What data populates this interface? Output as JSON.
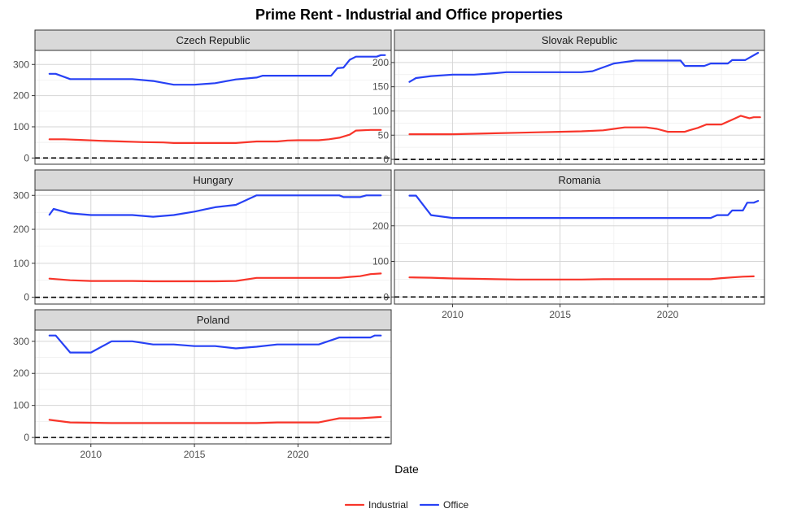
{
  "chart_data": {
    "type": "line",
    "title": "Prime Rent - Industrial and Office properties",
    "xlabel": "Date",
    "ylabel": "",
    "xlim": [
      2007.3,
      2024.5
    ],
    "x_ticks": [
      2010,
      2015,
      2020
    ],
    "zero_line": "dashed",
    "legend_position": "bottom",
    "series_names": [
      "Industrial",
      "Office"
    ],
    "colors": {
      "Industrial": "#f8352a",
      "Office": "#2741f5"
    },
    "panels": [
      {
        "name": "Czech Republic",
        "ylim": [
          -20,
          345
        ],
        "y_ticks": [
          0,
          100,
          200,
          300
        ],
        "series": [
          {
            "name": "Industrial",
            "points": [
              [
                2008,
                60
              ],
              [
                2008.7,
                60
              ],
              [
                2009.5,
                58
              ],
              [
                2010.5,
                55
              ],
              [
                2011.5,
                53
              ],
              [
                2012.5,
                51
              ],
              [
                2013.5,
                50
              ],
              [
                2014,
                48
              ],
              [
                2015,
                48
              ],
              [
                2016,
                48
              ],
              [
                2017,
                48
              ],
              [
                2018,
                53
              ],
              [
                2019,
                53
              ],
              [
                2019.5,
                56
              ],
              [
                2020,
                57
              ],
              [
                2021,
                57
              ],
              [
                2021.5,
                60
              ],
              [
                2022,
                65
              ],
              [
                2022.5,
                75
              ],
              [
                2022.8,
                88
              ],
              [
                2023.5,
                90
              ],
              [
                2024,
                90
              ]
            ]
          },
          {
            "name": "Office",
            "points": [
              [
                2008,
                270
              ],
              [
                2008.3,
                270
              ],
              [
                2009,
                253
              ],
              [
                2010,
                253
              ],
              [
                2011,
                253
              ],
              [
                2012,
                253
              ],
              [
                2013,
                247
              ],
              [
                2014,
                235
              ],
              [
                2015,
                235
              ],
              [
                2016,
                240
              ],
              [
                2017,
                252
              ],
              [
                2018,
                258
              ],
              [
                2018.3,
                264
              ],
              [
                2019,
                264
              ],
              [
                2020,
                264
              ],
              [
                2021,
                264
              ],
              [
                2021.6,
                264
              ],
              [
                2021.9,
                288
              ],
              [
                2022.2,
                290
              ],
              [
                2022.5,
                315
              ],
              [
                2022.8,
                325
              ],
              [
                2023.5,
                325
              ],
              [
                2023.8,
                325
              ],
              [
                2024,
                330
              ],
              [
                2024.2,
                330
              ]
            ]
          }
        ]
      },
      {
        "name": "Slovak Republic",
        "ylim": [
          -10,
          225
        ],
        "y_ticks": [
          0,
          50,
          100,
          150,
          200
        ],
        "series": [
          {
            "name": "Industrial",
            "points": [
              [
                2008,
                52
              ],
              [
                2009,
                52
              ],
              [
                2010,
                52
              ],
              [
                2011,
                53
              ],
              [
                2012,
                54
              ],
              [
                2013,
                55
              ],
              [
                2014,
                56
              ],
              [
                2015,
                57
              ],
              [
                2016,
                58
              ],
              [
                2017,
                60
              ],
              [
                2017.5,
                63
              ],
              [
                2018,
                66
              ],
              [
                2019,
                66
              ],
              [
                2019.5,
                63
              ],
              [
                2020,
                57
              ],
              [
                2020.8,
                57
              ],
              [
                2021,
                60
              ],
              [
                2021.4,
                65
              ],
              [
                2021.8,
                72
              ],
              [
                2022.5,
                72
              ],
              [
                2023,
                82
              ],
              [
                2023.4,
                90
              ],
              [
                2023.8,
                85
              ],
              [
                2024,
                87
              ],
              [
                2024.3,
                87
              ]
            ]
          },
          {
            "name": "Office",
            "points": [
              [
                2008,
                160
              ],
              [
                2008.3,
                168
              ],
              [
                2009,
                172
              ],
              [
                2010,
                175
              ],
              [
                2011,
                175
              ],
              [
                2012,
                178
              ],
              [
                2012.5,
                180
              ],
              [
                2013,
                180
              ],
              [
                2014,
                180
              ],
              [
                2015,
                180
              ],
              [
                2016,
                180
              ],
              [
                2016.5,
                182
              ],
              [
                2017.5,
                198
              ],
              [
                2018.5,
                204
              ],
              [
                2019.5,
                204
              ],
              [
                2020,
                204
              ],
              [
                2020.6,
                204
              ],
              [
                2020.8,
                193
              ],
              [
                2021,
                193
              ],
              [
                2021.7,
                193
              ],
              [
                2022,
                198
              ],
              [
                2022.8,
                198
              ],
              [
                2023,
                205
              ],
              [
                2023.6,
                205
              ],
              [
                2024.2,
                220
              ]
            ]
          }
        ]
      },
      {
        "name": "Hungary",
        "ylim": [
          -20,
          315
        ],
        "y_ticks": [
          0,
          100,
          200,
          300
        ],
        "series": [
          {
            "name": "Industrial",
            "points": [
              [
                2008,
                55
              ],
              [
                2009,
                50
              ],
              [
                2010,
                48
              ],
              [
                2011,
                48
              ],
              [
                2012,
                48
              ],
              [
                2013,
                47
              ],
              [
                2014,
                47
              ],
              [
                2015,
                47
              ],
              [
                2016,
                47
              ],
              [
                2017,
                48
              ],
              [
                2018,
                57
              ],
              [
                2019,
                57
              ],
              [
                2020,
                57
              ],
              [
                2021,
                57
              ],
              [
                2022,
                57
              ],
              [
                2022.5,
                60
              ],
              [
                2023,
                62
              ],
              [
                2023.5,
                68
              ],
              [
                2024,
                70
              ]
            ]
          },
          {
            "name": "Office",
            "points": [
              [
                2008,
                243
              ],
              [
                2008.2,
                260
              ],
              [
                2009,
                247
              ],
              [
                2010,
                242
              ],
              [
                2011,
                242
              ],
              [
                2012,
                242
              ],
              [
                2013,
                237
              ],
              [
                2014,
                242
              ],
              [
                2015,
                252
              ],
              [
                2016,
                265
              ],
              [
                2017,
                272
              ],
              [
                2018,
                300
              ],
              [
                2019,
                300
              ],
              [
                2020,
                300
              ],
              [
                2021,
                300
              ],
              [
                2022,
                300
              ],
              [
                2022.2,
                295
              ],
              [
                2023,
                295
              ],
              [
                2023.3,
                300
              ],
              [
                2024,
                300
              ]
            ]
          }
        ]
      },
      {
        "name": "Romania",
        "ylim": [
          -20,
          300
        ],
        "y_ticks": [
          0,
          100,
          200
        ],
        "series": [
          {
            "name": "Industrial",
            "points": [
              [
                2008,
                55
              ],
              [
                2009,
                54
              ],
              [
                2010,
                52
              ],
              [
                2011,
                51
              ],
              [
                2012,
                50
              ],
              [
                2013,
                49
              ],
              [
                2014,
                49
              ],
              [
                2015,
                49
              ],
              [
                2016,
                49
              ],
              [
                2017,
                50
              ],
              [
                2018,
                50
              ],
              [
                2019,
                50
              ],
              [
                2020,
                50
              ],
              [
                2021,
                50
              ],
              [
                2022,
                50
              ],
              [
                2022.5,
                53
              ],
              [
                2023,
                55
              ],
              [
                2023.5,
                57
              ],
              [
                2024,
                58
              ]
            ]
          },
          {
            "name": "Office",
            "points": [
              [
                2008,
                285
              ],
              [
                2008.3,
                285
              ],
              [
                2009,
                230
              ],
              [
                2010,
                222
              ],
              [
                2011,
                222
              ],
              [
                2012,
                222
              ],
              [
                2013,
                222
              ],
              [
                2014,
                222
              ],
              [
                2015,
                222
              ],
              [
                2016,
                222
              ],
              [
                2017,
                222
              ],
              [
                2018,
                222
              ],
              [
                2019,
                222
              ],
              [
                2020,
                222
              ],
              [
                2021,
                222
              ],
              [
                2022,
                222
              ],
              [
                2022.3,
                230
              ],
              [
                2022.8,
                230
              ],
              [
                2023,
                243
              ],
              [
                2023.5,
                243
              ],
              [
                2023.7,
                265
              ],
              [
                2024,
                265
              ],
              [
                2024.2,
                270
              ]
            ]
          }
        ]
      },
      {
        "name": "Poland",
        "ylim": [
          -20,
          335
        ],
        "y_ticks": [
          0,
          100,
          200,
          300
        ],
        "series": [
          {
            "name": "Industrial",
            "points": [
              [
                2008,
                55
              ],
              [
                2009,
                47
              ],
              [
                2010,
                46
              ],
              [
                2011,
                45
              ],
              [
                2012,
                45
              ],
              [
                2013,
                45
              ],
              [
                2014,
                45
              ],
              [
                2015,
                45
              ],
              [
                2016,
                45
              ],
              [
                2017,
                45
              ],
              [
                2018,
                45
              ],
              [
                2019,
                47
              ],
              [
                2020,
                47
              ],
              [
                2021,
                47
              ],
              [
                2022,
                60
              ],
              [
                2023,
                60
              ],
              [
                2024,
                64
              ]
            ]
          },
          {
            "name": "Office",
            "points": [
              [
                2008,
                318
              ],
              [
                2008.3,
                318
              ],
              [
                2009,
                265
              ],
              [
                2010,
                265
              ],
              [
                2011,
                300
              ],
              [
                2012,
                300
              ],
              [
                2013,
                290
              ],
              [
                2014,
                290
              ],
              [
                2015,
                285
              ],
              [
                2016,
                285
              ],
              [
                2017,
                278
              ],
              [
                2018,
                283
              ],
              [
                2019,
                290
              ],
              [
                2020,
                290
              ],
              [
                2021,
                290
              ],
              [
                2022,
                312
              ],
              [
                2023,
                312
              ],
              [
                2023.5,
                312
              ],
              [
                2023.7,
                318
              ],
              [
                2024,
                318
              ]
            ]
          }
        ]
      }
    ]
  }
}
